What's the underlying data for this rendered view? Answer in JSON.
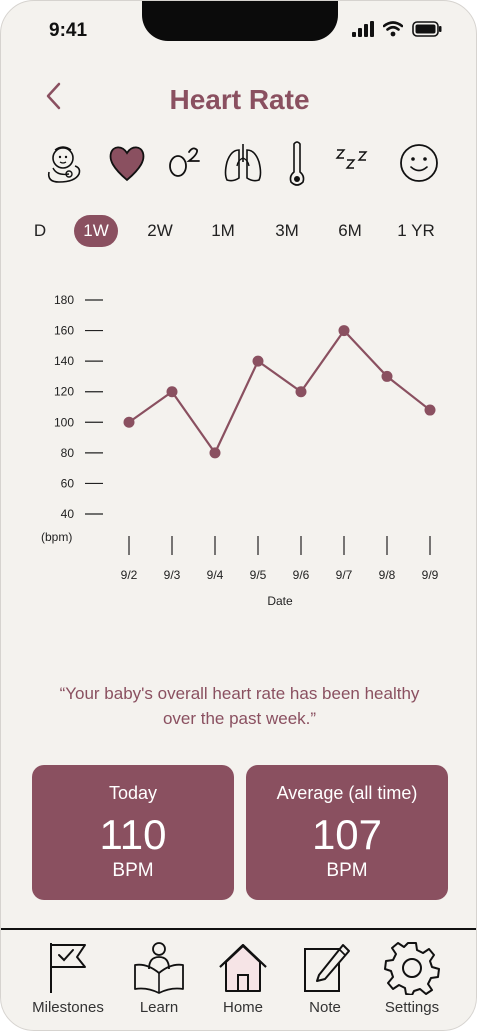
{
  "status": {
    "time": "9:41"
  },
  "header": {
    "title": "Heart Rate"
  },
  "metrics": [
    {
      "name": "baby-icon"
    },
    {
      "name": "heart-icon",
      "active": true
    },
    {
      "name": "oxygen-icon"
    },
    {
      "name": "lungs-icon"
    },
    {
      "name": "thermometer-icon"
    },
    {
      "name": "sleep-icon"
    },
    {
      "name": "mood-icon"
    }
  ],
  "range_tabs": [
    "D",
    "1W",
    "2W",
    "1M",
    "3M",
    "6M",
    "1 YR"
  ],
  "selected_range": "1W",
  "chart_data": {
    "type": "line",
    "title": "",
    "xlabel": "Date",
    "ylabel": "(bpm)",
    "categories": [
      "9/2",
      "9/3",
      "9/4",
      "9/5",
      "9/6",
      "9/7",
      "9/8",
      "9/9"
    ],
    "series": [
      {
        "values": [
          100,
          120,
          80,
          140,
          120,
          160,
          130,
          108
        ]
      }
    ],
    "yticks": [
      40,
      60,
      80,
      100,
      120,
      140,
      160,
      180
    ],
    "ylim": [
      40,
      180
    ],
    "grid": false,
    "color": "#8a5060"
  },
  "summary_quote": "“Your baby's overall heart rate has been healthy over the past week.”",
  "cards": {
    "today": {
      "label": "Today",
      "value": "110",
      "unit": "BPM"
    },
    "average": {
      "label": "Average (all time)",
      "value": "107",
      "unit": "BPM"
    }
  },
  "tabbar": {
    "milestones": "Milestones",
    "learn": "Learn",
    "home": "Home",
    "note": "Note",
    "settings": "Settings"
  },
  "colors": {
    "accent": "#8a5060",
    "background": "#f4f2ee",
    "home_fill": "#f6e4e6"
  }
}
